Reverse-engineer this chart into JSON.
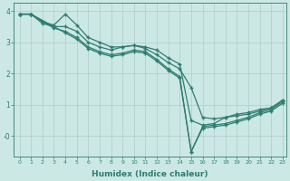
{
  "xlabel": "Humidex (Indice chaleur)",
  "ylabel": "",
  "bg_color": "#cce8e4",
  "grid_color": "#b0ccc8",
  "line_color": "#2d7d70",
  "xlim": [
    -0.5,
    23.3
  ],
  "ylim": [
    -0.65,
    4.25
  ],
  "lines": [
    {
      "x": [
        0,
        1,
        2,
        3,
        4,
        5,
        6,
        7,
        8,
        9,
        10,
        11,
        12,
        13,
        14,
        15,
        16,
        17,
        18,
        19,
        20,
        21,
        22,
        23
      ],
      "y": [
        3.9,
        3.9,
        3.65,
        3.55,
        3.9,
        3.55,
        3.15,
        3.0,
        2.85,
        2.85,
        2.9,
        2.85,
        2.75,
        2.5,
        2.3,
        0.5,
        0.35,
        0.4,
        0.6,
        0.7,
        0.75,
        0.85,
        0.9,
        1.15
      ]
    },
    {
      "x": [
        0,
        1,
        2,
        3,
        4,
        5,
        6,
        7,
        8,
        9,
        10,
        11,
        12,
        13,
        14,
        15,
        16,
        17,
        18,
        19,
        20,
        21,
        22,
        23
      ],
      "y": [
        3.9,
        3.9,
        3.6,
        3.5,
        3.5,
        3.35,
        3.0,
        2.85,
        2.75,
        2.85,
        2.9,
        2.8,
        2.6,
        2.35,
        2.15,
        1.55,
        0.6,
        0.55,
        0.6,
        0.65,
        0.7,
        0.8,
        0.9,
        1.15
      ]
    },
    {
      "x": [
        0,
        1,
        3,
        4,
        5,
        6,
        7,
        8,
        9,
        10,
        11,
        12,
        13,
        14,
        15,
        16,
        17,
        18,
        19,
        20,
        21,
        22,
        23
      ],
      "y": [
        3.9,
        3.9,
        3.45,
        3.35,
        3.15,
        2.85,
        2.7,
        2.6,
        2.65,
        2.75,
        2.7,
        2.45,
        2.15,
        1.9,
        -0.5,
        0.3,
        0.35,
        0.4,
        0.5,
        0.6,
        0.75,
        0.85,
        1.1
      ]
    },
    {
      "x": [
        0,
        1,
        4,
        5,
        6,
        7,
        8,
        9,
        10,
        11,
        12,
        13,
        14,
        15,
        16,
        17,
        18,
        19,
        20,
        21,
        22,
        23
      ],
      "y": [
        3.9,
        3.9,
        3.3,
        3.1,
        2.8,
        2.65,
        2.55,
        2.6,
        2.7,
        2.65,
        2.4,
        2.1,
        1.85,
        -0.5,
        0.25,
        0.3,
        0.35,
        0.45,
        0.55,
        0.7,
        0.8,
        1.05
      ]
    }
  ]
}
